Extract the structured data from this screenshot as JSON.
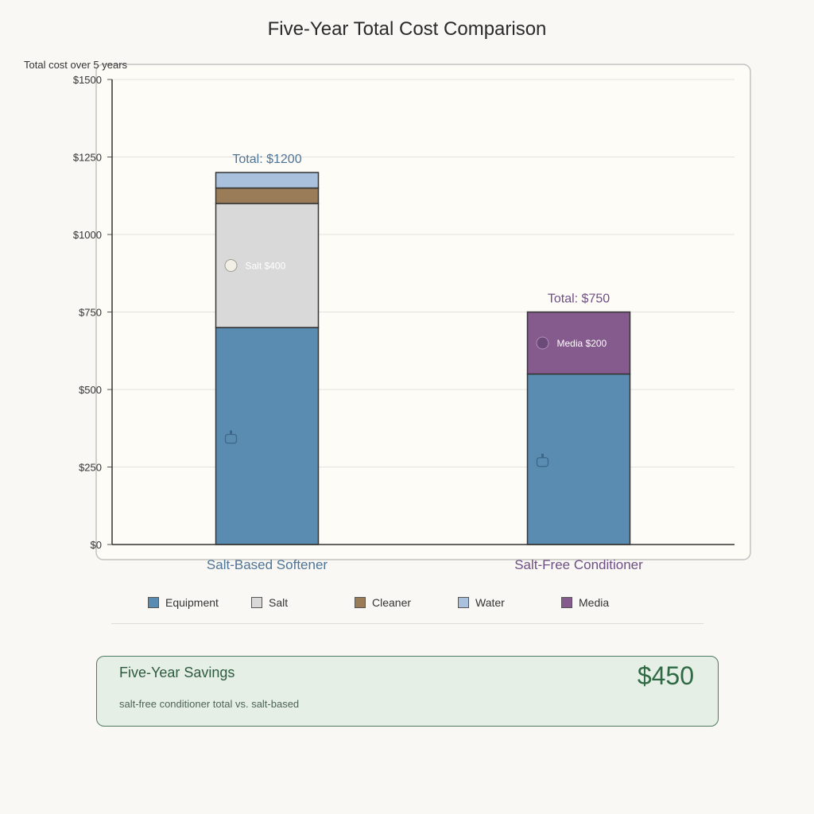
{
  "chart_data": {
    "type": "bar",
    "stacked": true,
    "title": "Five-Year Total Cost Comparison",
    "ylabel": "Total cost over 5 years",
    "xlabel": "",
    "ylim": [
      0,
      1500
    ],
    "yticks": [
      0,
      250,
      500,
      750,
      1000,
      1250,
      1500
    ],
    "ytick_labels": [
      "$0",
      "$250",
      "$500",
      "$750",
      "$1000",
      "$1250",
      "$1500"
    ],
    "categories": [
      "Salt-Based Softener",
      "Salt-Free Conditioner"
    ],
    "category_colors": [
      "#4e7496",
      "#6e4f85"
    ],
    "series": [
      {
        "name": "Equipment",
        "color": "#5a8bb0",
        "values": [
          700,
          550
        ]
      },
      {
        "name": "Salt",
        "color": "#d9d9d9",
        "values": [
          400,
          0
        ]
      },
      {
        "name": "Cleaner",
        "color": "#9a7d58",
        "values": [
          50,
          0
        ]
      },
      {
        "name": "Water",
        "color": "#a9c1dc",
        "values": [
          50,
          0
        ]
      },
      {
        "name": "Media",
        "color": "#855a8c",
        "values": [
          0,
          200
        ]
      }
    ],
    "totals": [
      "Total: $1200",
      "Total: $750"
    ],
    "segment_labels": [
      {
        "category": 0,
        "series": "Salt",
        "text": "Salt $400"
      },
      {
        "category": 1,
        "series": "Media",
        "text": "Media $200"
      }
    ],
    "grid": true,
    "legend_position": "bottom"
  },
  "savings": {
    "title": "Five-Year Savings",
    "subtitle": "salt-free conditioner total vs. salt-based",
    "amount": "$450"
  }
}
